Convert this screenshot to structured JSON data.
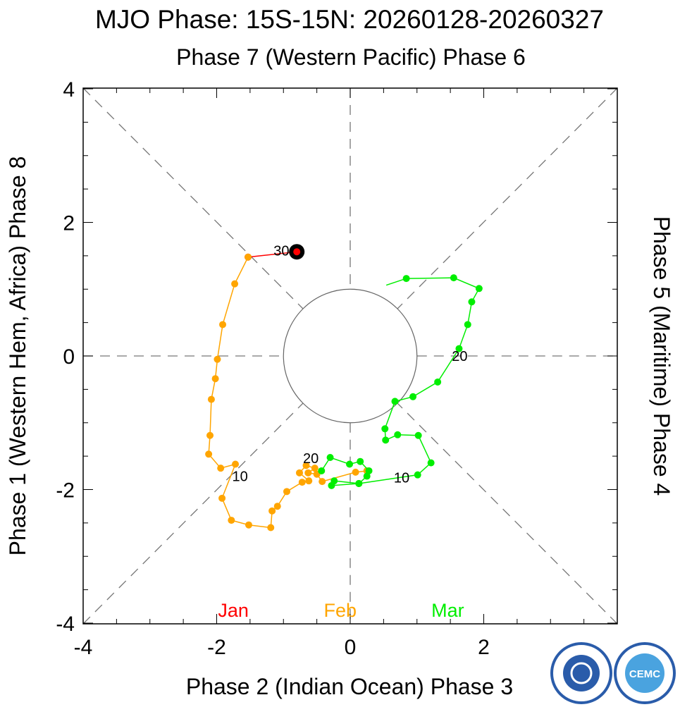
{
  "chart_data": {
    "type": "line",
    "title": "MJO Phase: 15S-15N: 20260128-20260327",
    "top_label": "Phase 7 (Western Pacific) Phase 6",
    "xlabel": "Phase 2 (Indian Ocean) Phase 3",
    "ylabel_left": "Phase 1 (Western Hem, Africa) Phase 8",
    "ylabel_right": "Phase 5 (Maritime) Phase 4",
    "xlim": [
      -4,
      4
    ],
    "ylim": [
      -4,
      4
    ],
    "x_ticks": [
      "-4",
      "-2",
      "0",
      "2"
    ],
    "y_ticks": [
      "4",
      "2",
      "0",
      "-2",
      "-4"
    ],
    "start_marker": [
      -0.8,
      1.56
    ],
    "series": [
      {
        "name": "Jan",
        "color": "#ff0000",
        "points": [
          [
            -0.8,
            1.56
          ],
          [
            -1.53,
            1.48
          ]
        ]
      },
      {
        "name": "Feb",
        "color": "#ffa500",
        "points": [
          [
            -1.53,
            1.48
          ],
          [
            -1.73,
            1.08
          ],
          [
            -1.91,
            0.47
          ],
          [
            -1.99,
            -0.05
          ],
          [
            -2.02,
            -0.34
          ],
          [
            -2.08,
            -0.65
          ],
          [
            -2.1,
            -1.19
          ],
          [
            -2.12,
            -1.47
          ],
          [
            -1.94,
            -1.68
          ],
          [
            -1.72,
            -1.62
          ],
          [
            -1.92,
            -2.13
          ],
          [
            -1.78,
            -2.46
          ],
          [
            -1.52,
            -2.53
          ],
          [
            -1.19,
            -2.57
          ],
          [
            -1.17,
            -2.32
          ],
          [
            -1.09,
            -2.25
          ],
          [
            -0.95,
            -2.03
          ],
          [
            -0.72,
            -1.89
          ],
          [
            -0.62,
            -1.87
          ],
          [
            -0.76,
            -1.75
          ],
          [
            -0.66,
            -1.64
          ],
          [
            -0.53,
            -1.68
          ],
          [
            -0.63,
            -1.75
          ],
          [
            -0.5,
            -1.77
          ],
          [
            -0.42,
            -1.88
          ],
          [
            0.08,
            -1.74
          ],
          [
            0.25,
            -1.72
          ]
        ]
      },
      {
        "name": "Mar",
        "color": "#00ee00",
        "points": [
          [
            -0.43,
            -1.72
          ],
          [
            -0.3,
            -1.52
          ],
          [
            -0.01,
            -1.62
          ],
          [
            0.15,
            -1.58
          ],
          [
            0.28,
            -1.72
          ],
          [
            0.25,
            -1.8
          ],
          [
            0.13,
            -1.91
          ],
          [
            -0.24,
            -1.87
          ],
          [
            -0.28,
            -1.94
          ],
          [
            0.13,
            -1.91
          ],
          [
            1.01,
            -1.78
          ],
          [
            1.21,
            -1.6
          ],
          [
            1.02,
            -1.19
          ],
          [
            0.71,
            -1.18
          ],
          [
            0.53,
            -1.26
          ],
          [
            0.52,
            -1.09
          ],
          [
            0.67,
            -0.68
          ],
          [
            0.94,
            -0.61
          ],
          [
            1.31,
            -0.39
          ],
          [
            1.63,
            0.11
          ],
          [
            1.76,
            0.47
          ],
          [
            1.82,
            0.81
          ],
          [
            1.93,
            1.01
          ],
          [
            1.55,
            1.17
          ],
          [
            0.84,
            1.16
          ]
        ],
        "end": [
          0.54,
          1.06
        ]
      }
    ],
    "day_labels": [
      {
        "text": "30",
        "x": -1.03,
        "y": 1.58
      },
      {
        "text": "10",
        "x": -1.65,
        "y": -1.8
      },
      {
        "text": "20",
        "x": -0.59,
        "y": -1.53
      },
      {
        "text": "10",
        "x": 0.77,
        "y": -1.82
      },
      {
        "text": "20",
        "x": 1.64,
        "y": 0.0
      }
    ],
    "month_labels": [
      {
        "text": "Jan",
        "color": "#ff0000",
        "x": -1.75
      },
      {
        "text": "Feb",
        "color": "#ffa500",
        "x": -0.15
      },
      {
        "text": "Mar",
        "color": "#00ee00",
        "x": 1.46
      }
    ],
    "logos": [
      "CMA",
      "CEMC"
    ]
  }
}
